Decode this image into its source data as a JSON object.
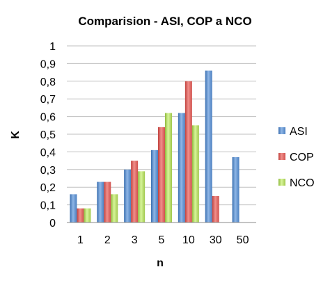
{
  "chart_data": {
    "type": "bar",
    "title": "Comparision - ASI, COP a NCO",
    "xlabel": "n",
    "ylabel": "K",
    "categories": [
      "1",
      "2",
      "3",
      "5",
      "10",
      "30",
      "50"
    ],
    "ylim": [
      0,
      1
    ],
    "yticks": [
      "0",
      "0,1",
      "0,2",
      "0,3",
      "0,4",
      "0,5",
      "0,6",
      "0,7",
      "0,8",
      "0,9",
      "1"
    ],
    "grid": true,
    "legend_position": "right",
    "series": [
      {
        "name": "ASI",
        "color": "#4F81BD",
        "values": [
          0.16,
          0.23,
          0.3,
          0.41,
          0.62,
          0.86,
          0.37
        ]
      },
      {
        "name": "COP",
        "color": "#C0504D",
        "values": [
          0.08,
          0.23,
          0.35,
          0.54,
          0.8,
          0.15,
          null
        ]
      },
      {
        "name": "NCO",
        "color": "#9BBB59",
        "values": [
          0.08,
          0.16,
          0.29,
          0.62,
          0.55,
          null,
          null
        ]
      }
    ]
  }
}
